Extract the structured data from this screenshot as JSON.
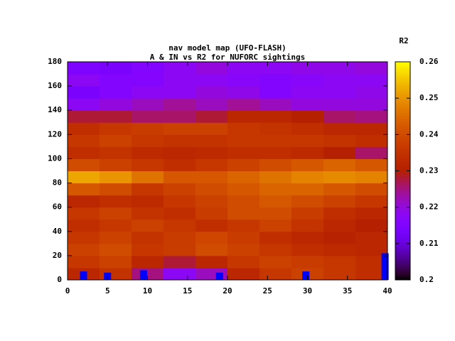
{
  "chart_data": {
    "type": "heatmap",
    "title": [
      "nav model map (UFO-FLASH)",
      "A & IN vs R2 for NUFORC sightings"
    ],
    "colorbar_label": "R2",
    "colormap": "gnuplot",
    "x_edges": [
      0,
      4,
      8,
      12,
      16,
      20,
      24,
      28,
      32,
      36,
      40
    ],
    "y_edges": [
      0,
      10,
      20,
      30,
      40,
      50,
      60,
      70,
      80,
      90,
      100,
      110,
      120,
      130,
      140,
      150,
      160,
      170,
      180
    ],
    "z": [
      [
        0.232,
        0.235,
        0.225,
        0.218,
        0.222,
        0.232,
        0.236,
        0.238,
        0.236,
        0.234
      ],
      [
        0.236,
        0.238,
        0.232,
        0.228,
        0.232,
        0.236,
        0.238,
        0.237,
        0.236,
        0.234
      ],
      [
        0.238,
        0.24,
        0.236,
        0.237,
        0.24,
        0.238,
        0.236,
        0.234,
        0.233,
        0.232
      ],
      [
        0.236,
        0.238,
        0.235,
        0.237,
        0.239,
        0.237,
        0.234,
        0.232,
        0.231,
        0.232
      ],
      [
        0.234,
        0.236,
        0.238,
        0.236,
        0.234,
        0.236,
        0.238,
        0.235,
        0.232,
        0.23
      ],
      [
        0.236,
        0.238,
        0.235,
        0.234,
        0.237,
        0.24,
        0.24,
        0.237,
        0.234,
        0.232
      ],
      [
        0.232,
        0.234,
        0.233,
        0.236,
        0.238,
        0.24,
        0.242,
        0.24,
        0.238,
        0.236
      ],
      [
        0.242,
        0.24,
        0.236,
        0.238,
        0.24,
        0.242,
        0.244,
        0.244,
        0.242,
        0.24
      ],
      [
        0.252,
        0.25,
        0.246,
        0.242,
        0.242,
        0.244,
        0.246,
        0.248,
        0.249,
        0.248
      ],
      [
        0.24,
        0.238,
        0.236,
        0.234,
        0.236,
        0.238,
        0.24,
        0.242,
        0.244,
        0.242
      ],
      [
        0.234,
        0.235,
        0.233,
        0.232,
        0.233,
        0.234,
        0.234,
        0.233,
        0.23,
        0.226
      ],
      [
        0.236,
        0.238,
        0.236,
        0.235,
        0.235,
        0.236,
        0.236,
        0.236,
        0.235,
        0.234
      ],
      [
        0.234,
        0.236,
        0.237,
        0.238,
        0.238,
        0.236,
        0.235,
        0.234,
        0.232,
        0.232
      ],
      [
        0.228,
        0.228,
        0.226,
        0.226,
        0.228,
        0.232,
        0.232,
        0.23,
        0.226,
        0.225
      ],
      [
        0.218,
        0.22,
        0.222,
        0.224,
        0.222,
        0.224,
        0.222,
        0.22,
        0.22,
        0.22
      ],
      [
        0.214,
        0.216,
        0.218,
        0.218,
        0.22,
        0.219,
        0.216,
        0.218,
        0.218,
        0.219
      ],
      [
        0.218,
        0.216,
        0.216,
        0.218,
        0.218,
        0.217,
        0.216,
        0.217,
        0.218,
        0.218
      ],
      [
        0.215,
        0.214,
        0.216,
        0.218,
        0.22,
        0.218,
        0.218,
        0.219,
        0.219,
        0.22
      ]
    ],
    "markers": {
      "color": "#0000ff",
      "x": [
        2,
        5,
        9.5,
        19,
        29.8,
        39.7
      ],
      "values": [
        7,
        6,
        8,
        6,
        7,
        22
      ]
    },
    "xlim": [
      0,
      40
    ],
    "xticks": [
      0,
      5,
      10,
      15,
      20,
      25,
      30,
      35,
      40
    ],
    "ylim": [
      0,
      180
    ],
    "yticks": [
      0,
      20,
      40,
      60,
      80,
      100,
      120,
      140,
      160,
      180
    ],
    "zlim": [
      0.2,
      0.26
    ],
    "zticks": [
      0.2,
      0.21,
      0.22,
      0.23,
      0.24,
      0.25,
      0.26
    ]
  }
}
